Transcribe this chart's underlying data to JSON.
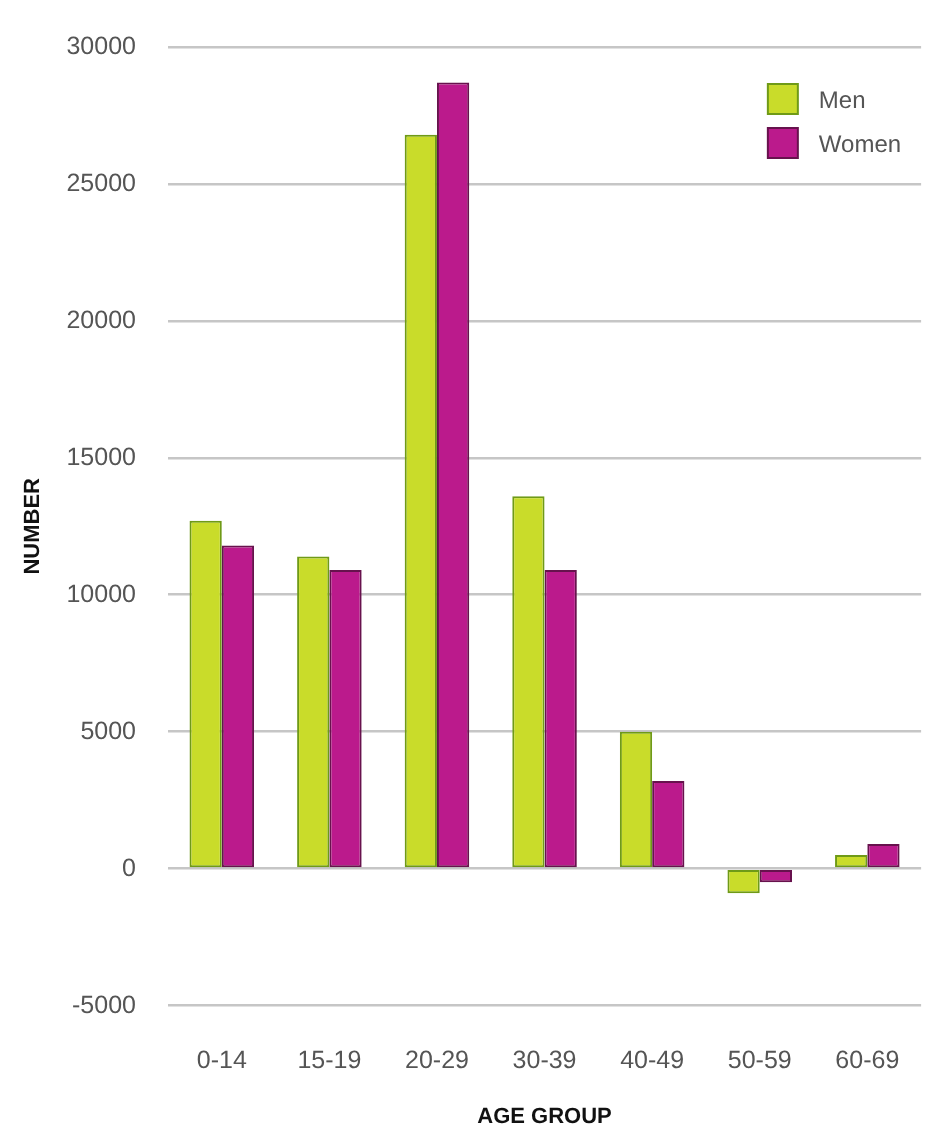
{
  "chart_data": {
    "type": "bar",
    "xlabel": "AGE GROUP",
    "ylabel": "NUMBER",
    "categories": [
      "0-14",
      "15-19",
      "20-29",
      "30-39",
      "40-49",
      "50-59",
      "60-69"
    ],
    "series": [
      {
        "name": "Men",
        "color": "#c9dc2a",
        "values": [
          12700,
          11400,
          26800,
          13600,
          5000,
          -900,
          500
        ]
      },
      {
        "name": "Women",
        "color": "#bb1a8c",
        "values": [
          11800,
          10900,
          28700,
          10900,
          3200,
          -500,
          900
        ]
      }
    ],
    "ylim": [
      -5000,
      30000
    ],
    "yticks": [
      -5000,
      0,
      5000,
      10000,
      15000,
      20000,
      25000,
      30000
    ],
    "grid": "y",
    "legend": "top right"
  }
}
